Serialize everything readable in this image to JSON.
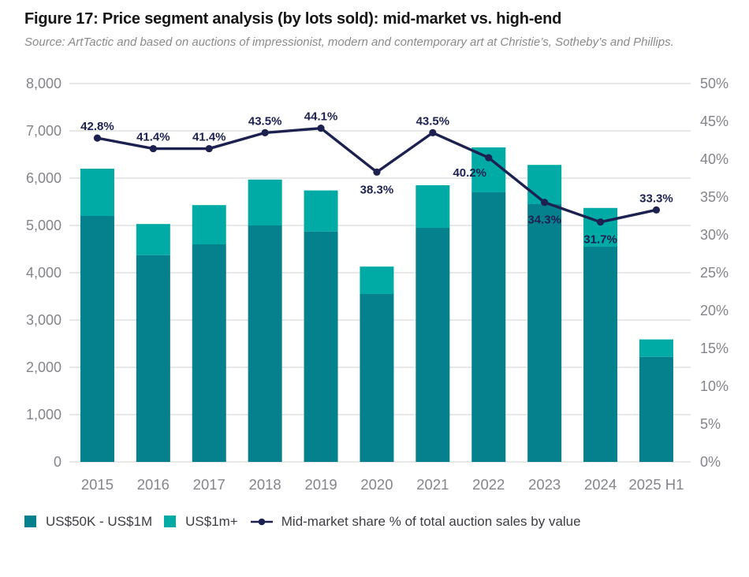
{
  "figure": {
    "title": "Figure 17: Price segment analysis (by lots sold): mid-market vs. high-end",
    "source": "Source: ArtTactic and based on auctions of impressionist, modern and contemporary art at Christie’s, Sotheby’s and Phillips."
  },
  "colors": {
    "mid_market_bar": "#05808D",
    "high_end_bar": "#00ABA6",
    "share_line": "#1C2150",
    "gridline": "#d9d9d9",
    "axis_text": "#84848c",
    "legend_text": "#3c3c43",
    "title_text": "#161616",
    "source_text": "#8a8a8a"
  },
  "legend": {
    "items": [
      {
        "label": "US$50K - US$1M",
        "swatch": "mid_market_bar",
        "kind": "square"
      },
      {
        "label": "US$1m+",
        "swatch": "high_end_bar",
        "kind": "square"
      },
      {
        "label": "Mid-market share % of total auction sales by value",
        "swatch": "share_line",
        "kind": "line-marker"
      }
    ]
  },
  "chart_data": {
    "type": "combo",
    "subtype": "stacked-bar with line overlay on secondary axis",
    "categories": [
      "2015",
      "2016",
      "2017",
      "2018",
      "2019",
      "2020",
      "2021",
      "2022",
      "2023",
      "2024",
      "2025 H1"
    ],
    "series": [
      {
        "name": "US$50K - US$1M",
        "type": "bar",
        "stack": "lots",
        "axis": "left",
        "color": "#05808D",
        "values": [
          5200,
          4370,
          4600,
          5000,
          4870,
          3550,
          4950,
          5700,
          5450,
          4550,
          2220
        ]
      },
      {
        "name": "US$1m+",
        "type": "bar",
        "stack": "lots",
        "axis": "left",
        "color": "#00ABA6",
        "values": [
          1000,
          660,
          830,
          970,
          870,
          580,
          900,
          950,
          830,
          820,
          370
        ]
      },
      {
        "name": "Mid-market share % of total auction sales by value",
        "type": "line",
        "axis": "right",
        "color": "#1C2150",
        "values": [
          42.8,
          41.4,
          41.4,
          43.5,
          44.1,
          38.3,
          43.5,
          40.2,
          34.3,
          31.7,
          33.3
        ],
        "point_labels": [
          "42.8%",
          "41.4%",
          "41.4%",
          "43.5%",
          "44.1%",
          "38.3%",
          "43.5%",
          "40.2%",
          "34.3%",
          "31.7%",
          "33.3%"
        ],
        "label_positions": [
          "above",
          "above",
          "above",
          "above",
          "above",
          "below",
          "above",
          "below-left",
          "below",
          "below",
          "above"
        ]
      }
    ],
    "left_axis": {
      "min": 0,
      "max": 8000,
      "step": 1000,
      "tick_labels": [
        "0",
        "1,000",
        "2,000",
        "3,000",
        "4,000",
        "5,000",
        "6,000",
        "7,000",
        "8,000"
      ]
    },
    "right_axis": {
      "min": 0,
      "max": 50,
      "step": 5,
      "tick_labels": [
        "0%",
        "5%",
        "10%",
        "15%",
        "20%",
        "25%",
        "30%",
        "35%",
        "40%",
        "45%",
        "50%"
      ]
    },
    "grid": "horizontal",
    "legend_position": "bottom"
  }
}
